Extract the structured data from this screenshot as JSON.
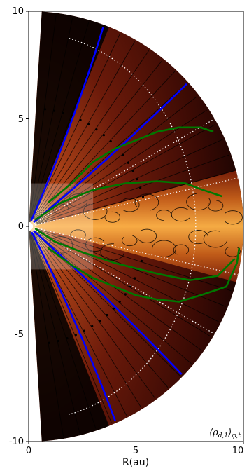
{
  "chart_data": {
    "type": "heatmap",
    "title": "",
    "xlabel": "R(au)",
    "ylabel": "",
    "annotation": "⟨ρ_d,1⟩_φ,t",
    "annotation_main": "⟨ρ",
    "annotation_sub": "d,1",
    "annotation_close": "⟩",
    "annotation_sub2": "φ,t",
    "x_ticks": [
      "0",
      "5",
      "10"
    ],
    "y_ticks": [
      "10",
      "5",
      "0",
      "-5",
      "-10"
    ],
    "xlim": [
      0,
      10
    ],
    "ylim": [
      -10,
      10
    ],
    "domain": {
      "r_outer_au": 10,
      "r_inner_au": 0.2,
      "theta_from_pole_deg": [
        3.5,
        176.5
      ]
    },
    "colormap": "afmhot",
    "dense_region": {
      "r_range_au": [
        1,
        10
      ],
      "half_opening_deg": 15,
      "color_core": "#ffb347",
      "color_edge": "#b84a10"
    },
    "blue_lines": [
      {
        "r_start_au": 0.3,
        "r_end_au": 10,
        "theta_deg": 20.5,
        "curvature": 0.6
      },
      {
        "r_start_au": 0.3,
        "r_end_au": 10,
        "theta_deg": 48,
        "curvature": 0.4
      },
      {
        "r_start_au": 0.3,
        "r_end_au": 10,
        "theta_deg": 134,
        "curvature": 0.4
      },
      {
        "r_start_au": 0.3,
        "r_end_au": 10,
        "theta_deg": 156,
        "curvature": 0.6
      }
    ],
    "green_contour": {
      "upper": [
        [
          0.9,
          1.1
        ],
        [
          2,
          2.0
        ],
        [
          3,
          3.0
        ],
        [
          4,
          3.6
        ],
        [
          5,
          4.0
        ],
        [
          6,
          4.4
        ],
        [
          7,
          4.6
        ],
        [
          8,
          4.6
        ],
        [
          8.6,
          4.4
        ]
      ],
      "inner_upper": [
        [
          0.3,
          0.3
        ],
        [
          1.5,
          1.1
        ],
        [
          3,
          1.7
        ],
        [
          4.5,
          2.0
        ],
        [
          6,
          2.1
        ],
        [
          7.3,
          2.0
        ],
        [
          8.1,
          1.7
        ],
        [
          9,
          1.4
        ]
      ],
      "inner_lower": [
        [
          0.3,
          -0.1
        ],
        [
          1.2,
          -0.7
        ],
        [
          2.5,
          -1.2
        ],
        [
          4,
          -1.7
        ],
        [
          6,
          -2.2
        ],
        [
          7.5,
          -2.5
        ],
        [
          8.8,
          -2.3
        ],
        [
          9.6,
          -1.5
        ]
      ],
      "lower": [
        [
          0.9,
          -1.0
        ],
        [
          2,
          -1.8
        ],
        [
          3,
          -2.4
        ],
        [
          4,
          -2.8
        ],
        [
          5,
          -3.2
        ],
        [
          6,
          -3.4
        ],
        [
          7,
          -3.5
        ],
        [
          8,
          -3.2
        ],
        [
          9.2,
          -2.8
        ],
        [
          9.7,
          -1.7
        ],
        [
          9.8,
          -1.0
        ]
      ]
    },
    "white_dotted": {
      "circle_r_au": 10.5,
      "rays_deg": [
        60,
        77,
        103,
        120
      ]
    },
    "inset_box": {
      "x": [
        0,
        3
      ],
      "y": [
        -2,
        2
      ]
    },
    "colors": {
      "background": "#000000",
      "blue": "#0000ff",
      "green": "#007800",
      "white_dotted": "#ffffff",
      "streamline": "#000000"
    }
  }
}
